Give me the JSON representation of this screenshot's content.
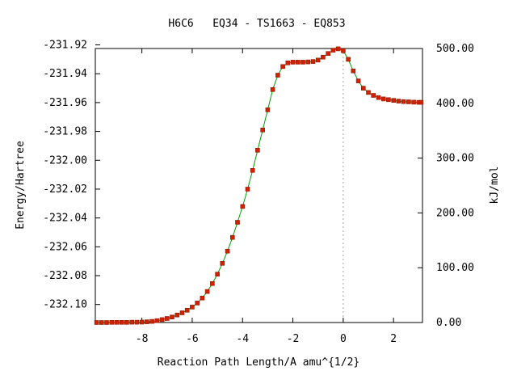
{
  "chart_data": {
    "type": "line",
    "title": "H6C6   EQ34 - TS1663 - EQ853",
    "xlabel": "Reaction Path Length/A amu^{1/2}",
    "ylabel": "Energy/Hartree",
    "y2label": "kJ/mol",
    "xlim": [
      -9.85,
      3.15
    ],
    "ylim": [
      -232.1125,
      -231.9225
    ],
    "y2lim": [
      0,
      500
    ],
    "x_ticks": [
      -8,
      -6,
      -4,
      -2,
      0,
      2
    ],
    "x_tick_labels": [
      "-8",
      "-6",
      "-4",
      "-2",
      "0",
      "2"
    ],
    "y_ticks": [
      -231.92,
      -231.94,
      -231.96,
      -231.98,
      -232.0,
      -232.02,
      -232.04,
      -232.06,
      -232.08,
      -232.1
    ],
    "y_tick_labels": [
      "-231.92",
      "-231.94",
      "-231.96",
      "-231.98",
      "-232.00",
      "-232.02",
      "-232.04",
      "-232.06",
      "-232.08",
      "-232.10"
    ],
    "y2_ticks": [
      0,
      100,
      200,
      300,
      400,
      500
    ],
    "y2_tick_labels": [
      "0.00",
      "100.00",
      "200.00",
      "300.00",
      "400.00",
      "500.00"
    ],
    "ts_marker_x": 0,
    "grid": false,
    "colors": {
      "line": "#00a000",
      "marker": "#d42000",
      "marker_edge": "#8b1a00",
      "ts_line": "#a0a0a0"
    },
    "series": [
      {
        "x": [
          -9.8,
          -9.6,
          -9.4,
          -9.2,
          -9.0,
          -8.8,
          -8.6,
          -8.4,
          -8.2,
          -8.0,
          -7.8,
          -7.6,
          -7.4,
          -7.2,
          -7.0,
          -6.8,
          -6.6,
          -6.4,
          -6.2,
          -6.0,
          -5.8,
          -5.6,
          -5.4,
          -5.2,
          -5.0,
          -4.8,
          -4.6,
          -4.4,
          -4.2,
          -4.0,
          -3.8,
          -3.6,
          -3.4,
          -3.2,
          -3.0,
          -2.8,
          -2.6,
          -2.4,
          -2.2,
          -2.0,
          -1.8,
          -1.6,
          -1.4,
          -1.2,
          -1.0,
          -0.8,
          -0.6,
          -0.4,
          -0.2,
          0.0,
          0.2,
          0.4,
          0.6,
          0.8,
          1.0,
          1.2,
          1.4,
          1.6,
          1.8,
          2.0,
          2.2,
          2.4,
          2.6,
          2.8,
          3.0,
          3.1
        ],
        "y": [
          -232.1125,
          -232.1125,
          -232.1125,
          -232.1124,
          -232.1124,
          -232.1124,
          -232.1124,
          -232.1123,
          -232.1123,
          -232.1122,
          -232.112,
          -232.1117,
          -232.1112,
          -232.1105,
          -232.1097,
          -232.1087,
          -232.1073,
          -232.1058,
          -232.104,
          -232.1018,
          -232.099,
          -232.0955,
          -232.091,
          -232.0855,
          -232.079,
          -232.0715,
          -232.063,
          -232.0535,
          -232.043,
          -232.032,
          -232.02,
          -232.007,
          -231.993,
          -231.979,
          -231.965,
          -231.951,
          -231.941,
          -231.935,
          -231.9325,
          -231.932,
          -231.932,
          -231.932,
          -231.9318,
          -231.9315,
          -231.9305,
          -231.9285,
          -231.926,
          -231.9237,
          -231.9227,
          -231.924,
          -231.93,
          -231.938,
          -231.945,
          -231.95,
          -231.953,
          -231.955,
          -231.9565,
          -231.9575,
          -231.958,
          -231.9585,
          -231.959,
          -231.9593,
          -231.9595,
          -231.9597,
          -231.9598,
          -231.9598
        ]
      }
    ]
  }
}
